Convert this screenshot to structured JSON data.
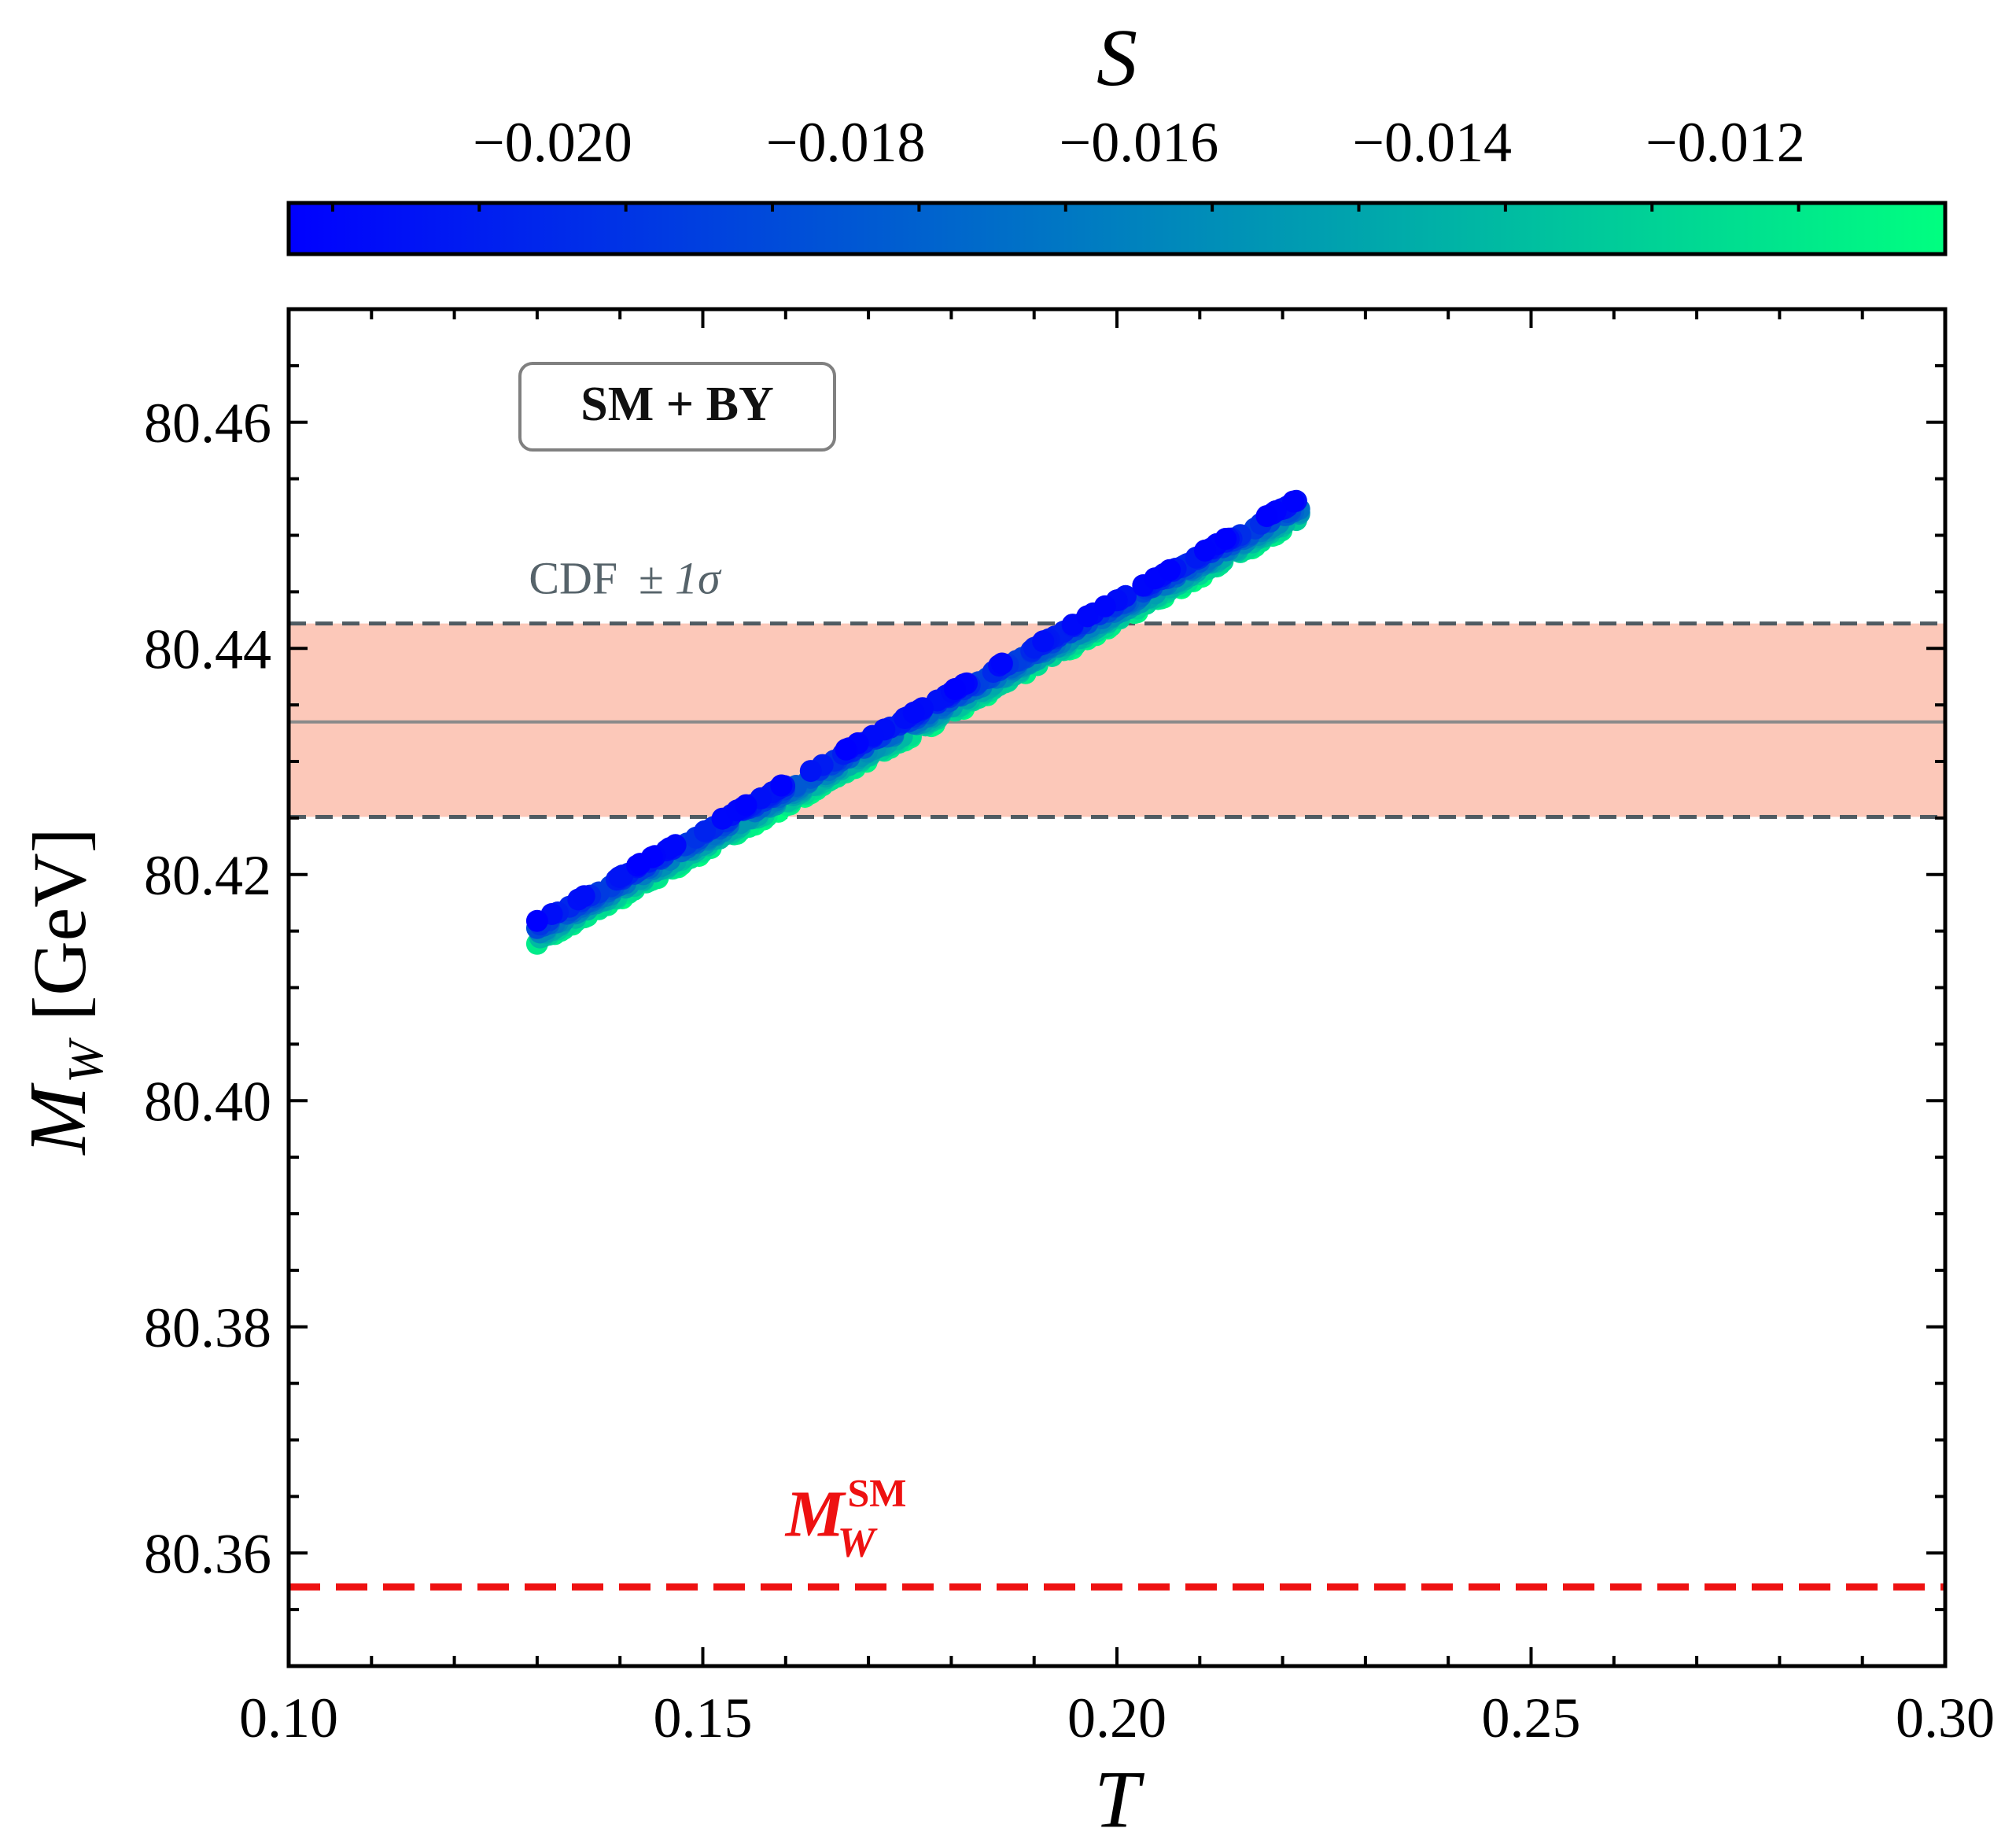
{
  "chart_data": {
    "type": "scatter",
    "title": "",
    "xlabel": "T",
    "ylabel_symbol": "M",
    "ylabel_subscript": "W",
    "ylabel_unit": "[GeV]",
    "xlim": [
      0.1,
      0.3
    ],
    "ylim": [
      80.35,
      80.47
    ],
    "x_ticks": [
      0.1,
      0.15,
      0.2,
      0.25,
      0.3
    ],
    "x_tick_labels": [
      "0.10",
      "0.15",
      "0.20",
      "0.25",
      "0.30"
    ],
    "y_ticks": [
      80.36,
      80.38,
      80.4,
      80.42,
      80.44,
      80.46
    ],
    "y_tick_labels": [
      "80.36",
      "80.38",
      "80.40",
      "80.42",
      "80.44",
      "80.46"
    ],
    "grid": false,
    "colorbar": {
      "label": "S",
      "position": "top",
      "range": [
        -0.0218,
        -0.0105
      ],
      "ticks": [
        -0.02,
        -0.018,
        -0.016,
        -0.014,
        -0.012
      ],
      "tick_labels": [
        "−0.020",
        "−0.018",
        "−0.016",
        "−0.014",
        "−0.012"
      ],
      "colormap_start": "#0000ff",
      "colormap_end": "#00ff80"
    },
    "band": {
      "label_text": "CDF",
      "label_sym": "± 1σ",
      "center": 80.4335,
      "lower": 80.4251,
      "upper": 80.4422,
      "fill_color": "#fcc8b9",
      "edge_color": "#4f5b62",
      "center_color": "#8a8a8a"
    },
    "sm_line": {
      "value": 80.357,
      "label_symbol": "M",
      "label_subscript": "W",
      "label_superscript": "SM",
      "color": "#ee1111"
    },
    "scatter": {
      "description_note": "dense points along T → M_W linear relation, colour = S",
      "t_range": [
        0.13,
        0.222
      ],
      "mw_at_t_min": 80.4148,
      "mw_at_t_max": 80.4522,
      "s_spread": [
        -0.0218,
        -0.0105
      ]
    },
    "legend_box": {
      "text": "SM + BY",
      "placement": "top-left"
    }
  }
}
